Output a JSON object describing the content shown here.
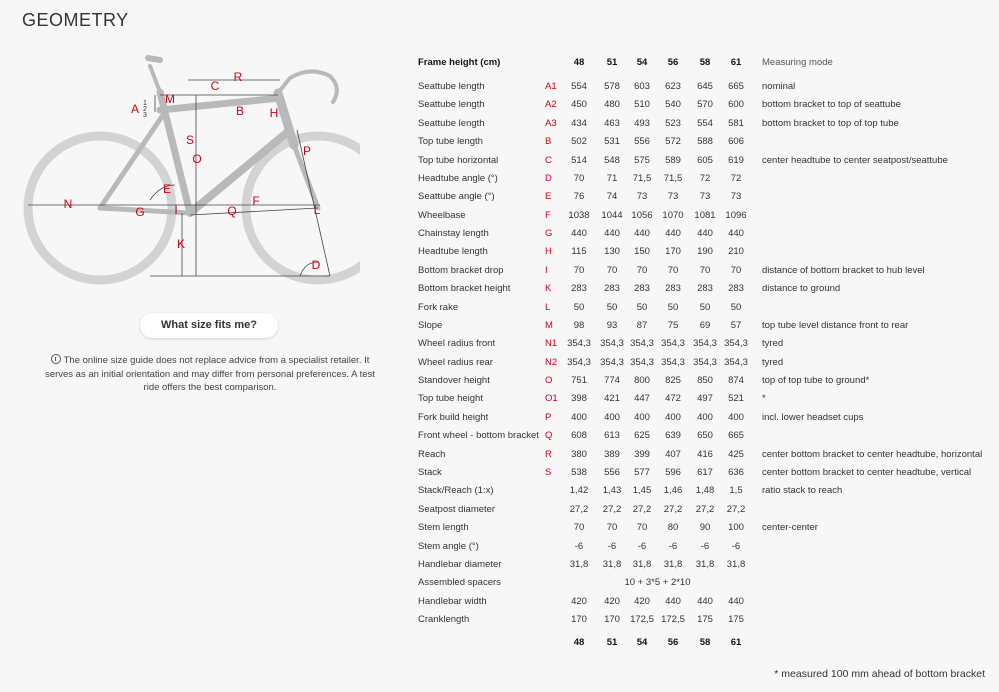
{
  "header": {
    "title": "GEOMETRY"
  },
  "diagram": {
    "labels": [
      "A",
      "1",
      "2",
      "3",
      "M",
      "R",
      "C",
      "B",
      "H",
      "S",
      "O",
      "P",
      "E",
      "F",
      "N",
      "G",
      "I",
      "Q",
      "L",
      "K",
      "D"
    ]
  },
  "button": {
    "label": "What size fits me?"
  },
  "info": {
    "text": "The online size guide does not replace advice from a specialist retailer. It serves as an initial orientation and may differ from personal preferences. A test ride offers the best comparison."
  },
  "table": {
    "columns": {
      "frame_height": "Frame height (cm)",
      "sizes": [
        "48",
        "51",
        "54",
        "56",
        "58",
        "61"
      ],
      "mode": "Measuring mode"
    },
    "rows": [
      {
        "name": "Seattube length",
        "code": "A1",
        "values": [
          "554",
          "578",
          "603",
          "623",
          "645",
          "665"
        ],
        "mode": "nominal"
      },
      {
        "name": "Seattube length",
        "code": "A2",
        "values": [
          "450",
          "480",
          "510",
          "540",
          "570",
          "600"
        ],
        "mode": "bottom bracket to top of seattube"
      },
      {
        "name": "Seattube length",
        "code": "A3",
        "values": [
          "434",
          "463",
          "493",
          "523",
          "554",
          "581"
        ],
        "mode": "bottom bracket to top of top tube"
      },
      {
        "name": "Top tube length",
        "code": "B",
        "values": [
          "502",
          "531",
          "556",
          "572",
          "588",
          "606"
        ]
      },
      {
        "name": "Top tube horizontal",
        "code": "C",
        "values": [
          "514",
          "548",
          "575",
          "589",
          "605",
          "619"
        ],
        "mode": "center headtube to center seatpost/seattube"
      },
      {
        "name": "Headtube angle (°)",
        "code": "D",
        "values": [
          "70",
          "71",
          "71,5",
          "71,5",
          "72",
          "72"
        ]
      },
      {
        "name": "Seattube angle (°)",
        "code": "E",
        "values": [
          "76",
          "74",
          "73",
          "73",
          "73",
          "73"
        ]
      },
      {
        "name": "Wheelbase",
        "code": "F",
        "values": [
          "1038",
          "1044",
          "1056",
          "1070",
          "1081",
          "1096"
        ]
      },
      {
        "name": "Chainstay length",
        "code": "G",
        "values": [
          "440",
          "440",
          "440",
          "440",
          "440",
          "440"
        ]
      },
      {
        "name": "Headtube length",
        "code": "H",
        "values": [
          "115",
          "130",
          "150",
          "170",
          "190",
          "210"
        ]
      },
      {
        "name": "Bottom bracket drop",
        "code": "I",
        "values": [
          "70",
          "70",
          "70",
          "70",
          "70",
          "70"
        ],
        "mode": "distance of bottom bracket to hub level"
      },
      {
        "name": "Bottom bracket height",
        "code": "K",
        "values": [
          "283",
          "283",
          "283",
          "283",
          "283",
          "283"
        ],
        "mode": "distance to ground"
      },
      {
        "name": "Fork rake",
        "code": "L",
        "values": [
          "50",
          "50",
          "50",
          "50",
          "50",
          "50"
        ]
      },
      {
        "name": "Slope",
        "code": "M",
        "values": [
          "98",
          "93",
          "87",
          "75",
          "69",
          "57"
        ],
        "mode": "top tube level distance front to rear"
      },
      {
        "name": "Wheel radius front",
        "code": "N1",
        "values": [
          "354,3",
          "354,3",
          "354,3",
          "354,3",
          "354,3",
          "354,3"
        ],
        "mode": "tyred"
      },
      {
        "name": "Wheel radius rear",
        "code": "N2",
        "values": [
          "354,3",
          "354,3",
          "354,3",
          "354,3",
          "354,3",
          "354,3"
        ],
        "mode": "tyred"
      },
      {
        "name": "Standover height",
        "code": "O",
        "values": [
          "751",
          "774",
          "800",
          "825",
          "850",
          "874"
        ],
        "mode": "top of top tube to ground*"
      },
      {
        "name": "Top tube height",
        "code": "O1",
        "values": [
          "398",
          "421",
          "447",
          "472",
          "497",
          "521"
        ],
        "mode": "*"
      },
      {
        "name": "Fork build height",
        "code": "P",
        "values": [
          "400",
          "400",
          "400",
          "400",
          "400",
          "400"
        ],
        "mode": "incl. lower headset cups"
      },
      {
        "name": "Front wheel - bottom bracket",
        "code": "Q",
        "values": [
          "608",
          "613",
          "625",
          "639",
          "650",
          "665"
        ]
      },
      {
        "name": "Reach",
        "code": "R",
        "values": [
          "380",
          "389",
          "399",
          "407",
          "416",
          "425"
        ],
        "mode": "center bottom bracket to center headtube, horizontal"
      },
      {
        "name": "Stack",
        "code": "S",
        "values": [
          "538",
          "556",
          "577",
          "596",
          "617",
          "636"
        ],
        "mode": "center bottom bracket to center headtube, vertical"
      },
      {
        "name": "Stack/Reach (1:x)",
        "values": [
          "1,42",
          "1,43",
          "1,45",
          "1,46",
          "1,48",
          "1,5"
        ],
        "mode": "ratio stack to reach"
      },
      {
        "name": "Seatpost diameter",
        "values": [
          "27,2",
          "27,2",
          "27,2",
          "27,2",
          "27,2",
          "27,2"
        ]
      },
      {
        "name": "Stem length",
        "values": [
          "70",
          "70",
          "70",
          "80",
          "90",
          "100"
        ],
        "mode": "center-center"
      },
      {
        "name": "Stem angle (°)",
        "values": [
          "-6",
          "-6",
          "-6",
          "-6",
          "-6",
          "-6"
        ]
      },
      {
        "name": "Handlebar diameter",
        "values": [
          "31,8",
          "31,8",
          "31,8",
          "31,8",
          "31,8",
          "31,8"
        ]
      },
      {
        "name": "Assembled spacers",
        "values": [
          "10 + 3*5 + 2*10"
        ]
      },
      {
        "name": "Handlebar width",
        "values": [
          "420",
          "420",
          "420",
          "440",
          "440",
          "440"
        ]
      },
      {
        "name": "Cranklength",
        "values": [
          "170",
          "170",
          "172,5",
          "172,5",
          "175",
          "175"
        ]
      }
    ]
  },
  "footnote": "* measured 100 mm ahead of bottom bracket"
}
